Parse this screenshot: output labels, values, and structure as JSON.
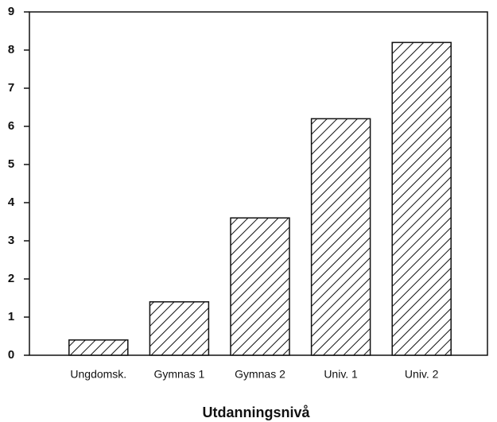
{
  "chart_data": {
    "type": "bar",
    "x_label": "Utdanningsnivå",
    "categories": [
      "Ungdomsk.",
      "Gymnas 1",
      "Gymnas 2",
      "Univ. 1",
      "Univ. 2"
    ],
    "values": [
      0.4,
      1.4,
      3.6,
      6.2,
      8.2
    ],
    "color": "#111111",
    "ylim": [
      0,
      9
    ],
    "yticks": [
      0,
      1,
      2,
      3,
      4,
      5,
      6,
      7,
      8,
      9
    ],
    "grid": false
  }
}
